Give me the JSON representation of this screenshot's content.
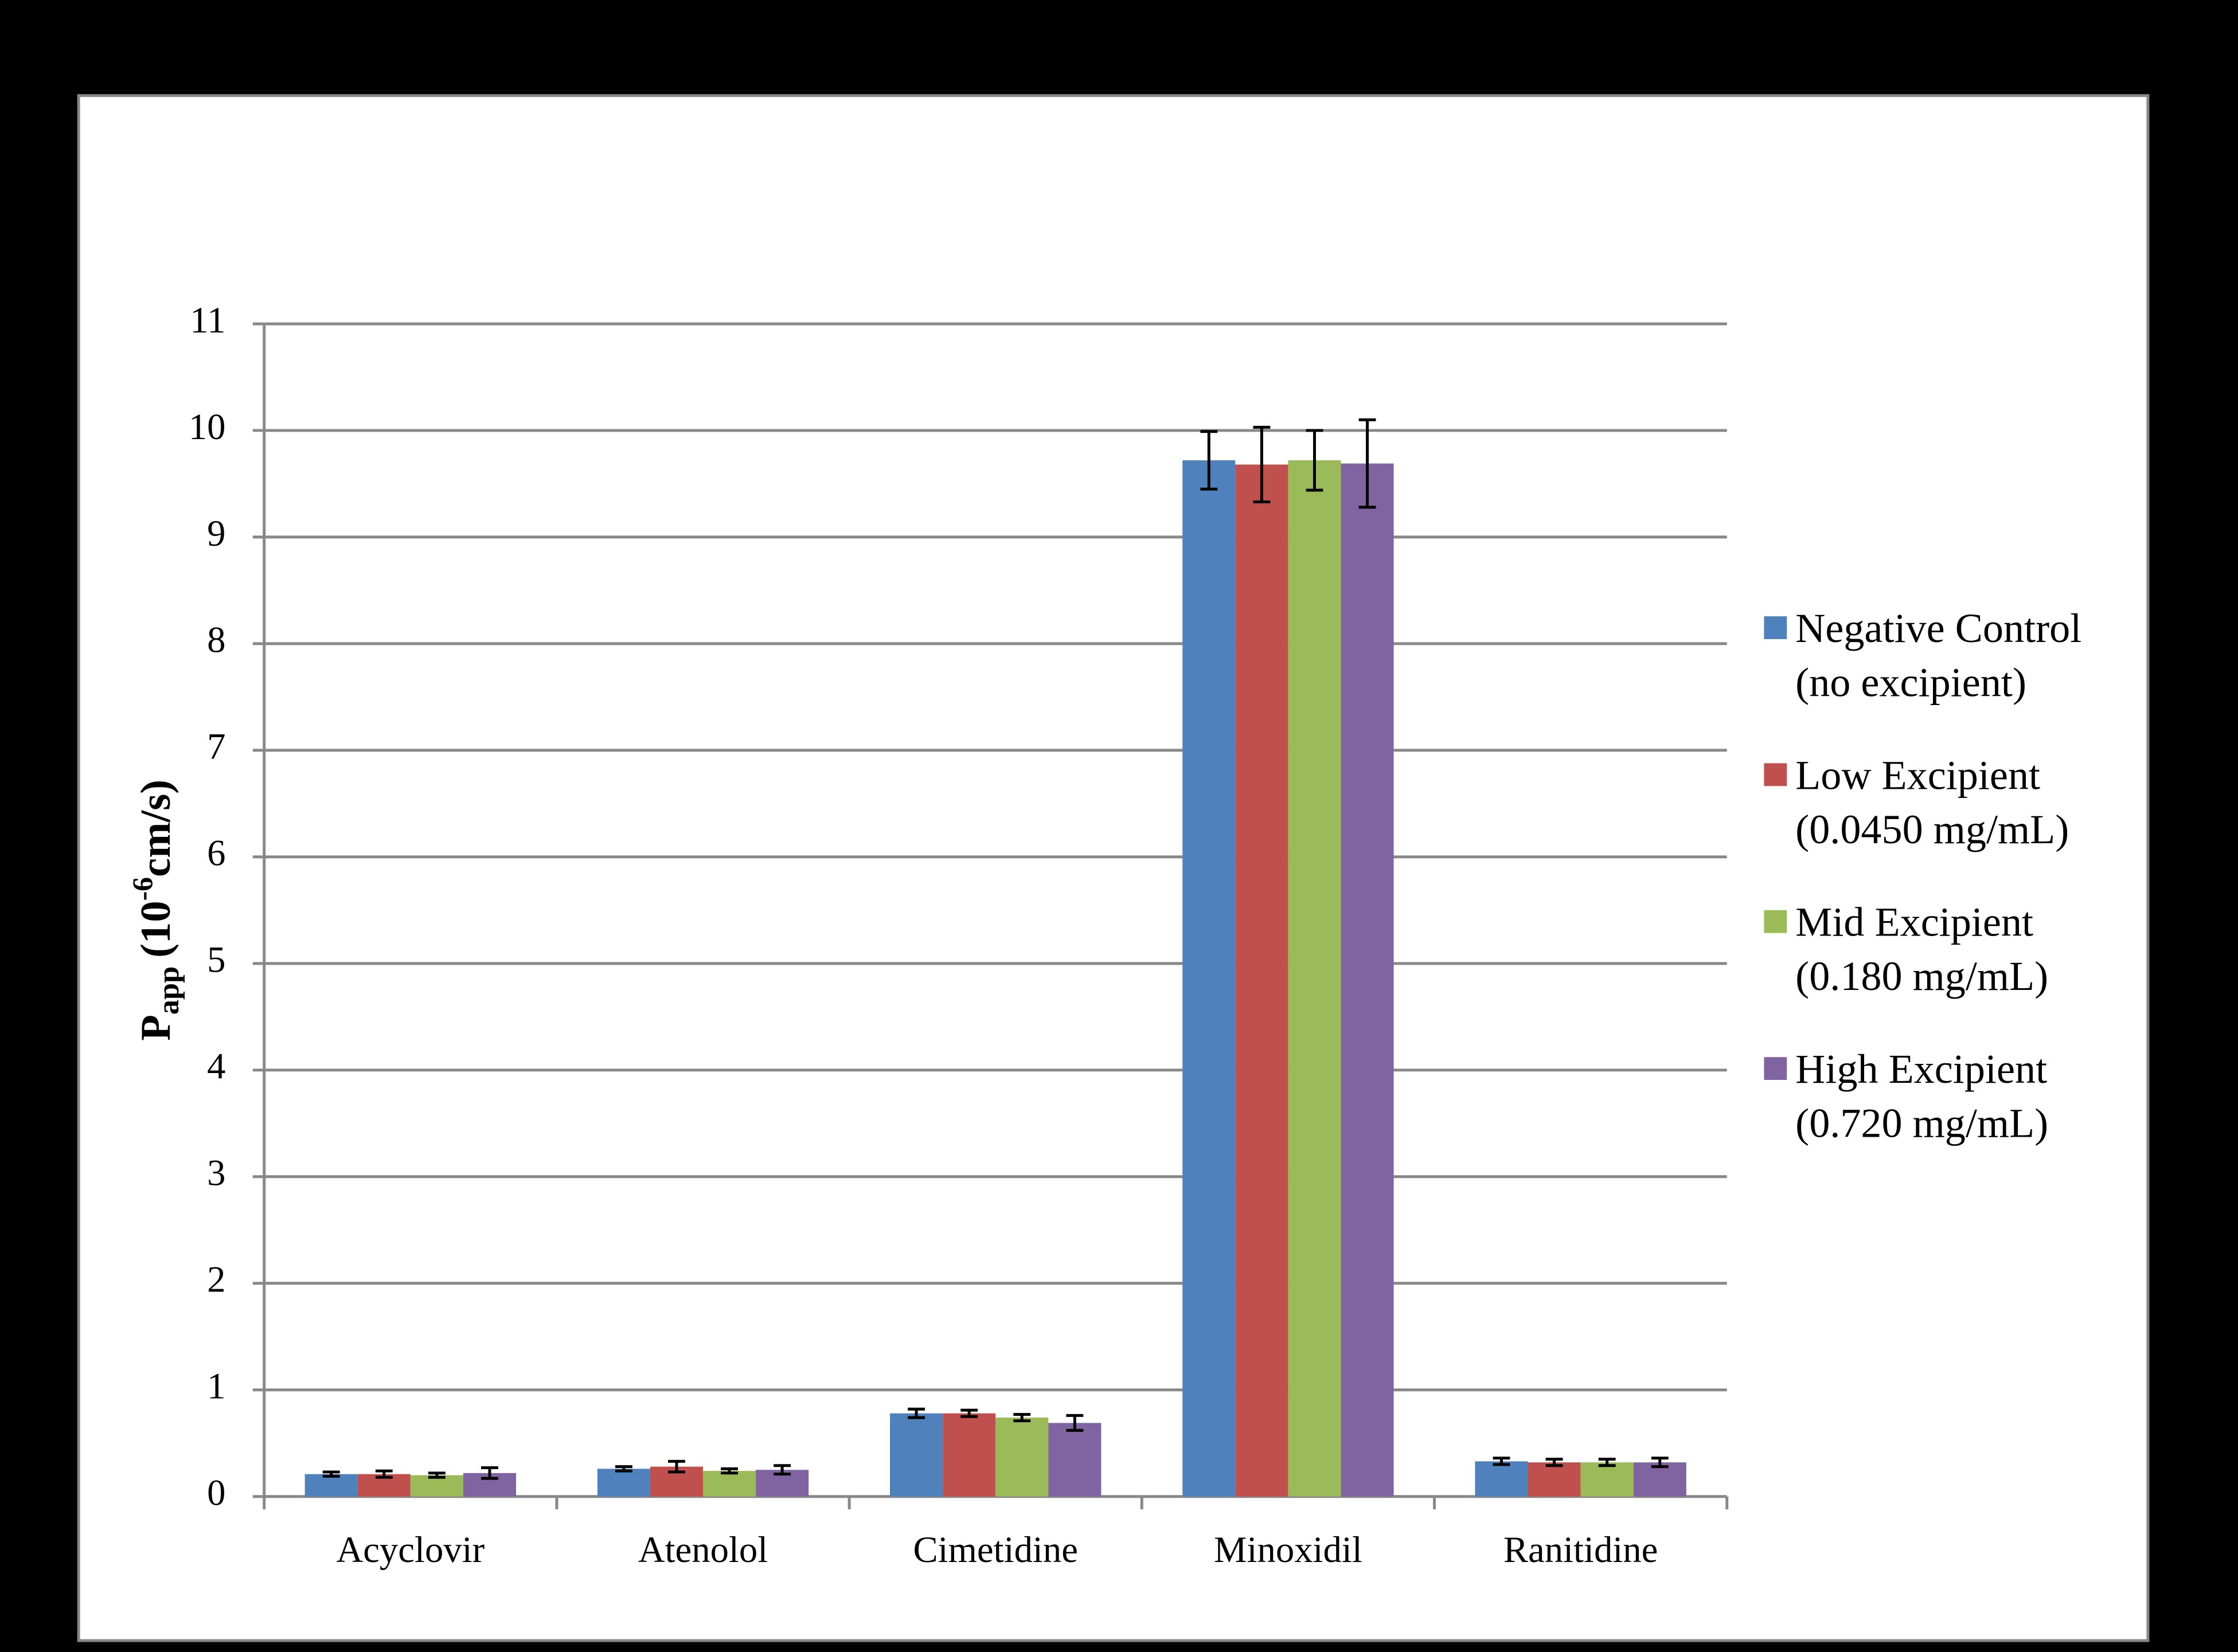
{
  "chart_data": {
    "type": "bar",
    "y_label": {
      "symbol": "P",
      "subscript": "app",
      "unit_start": "(10",
      "exponent": "-6",
      "unit_end": "cm/s)"
    },
    "categories": [
      "Acyclovir",
      "Atenolol",
      "Cimetidine",
      "Minoxidil",
      "Ranitidine"
    ],
    "series": [
      {
        "name": "Negative Control\n(no excipient)",
        "color": "#4f81bd",
        "values": [
          0.21,
          0.26,
          0.78,
          9.72,
          0.33
        ],
        "errors": [
          0.02,
          0.02,
          0.04,
          0.27,
          0.03
        ]
      },
      {
        "name": "Low Excipient\n(0.0450 mg/mL)",
        "color": "#c0504d",
        "values": [
          0.21,
          0.28,
          0.78,
          9.68,
          0.32
        ],
        "errors": [
          0.03,
          0.05,
          0.03,
          0.35,
          0.03
        ]
      },
      {
        "name": "Mid Excipient\n(0.180 mg/mL)",
        "color": "#9bbb59",
        "values": [
          0.2,
          0.24,
          0.74,
          9.72,
          0.32
        ],
        "errors": [
          0.02,
          0.02,
          0.03,
          0.28,
          0.03
        ]
      },
      {
        "name": "High Excipient\n(0.720 mg/mL)",
        "color": "#8064a2",
        "values": [
          0.22,
          0.25,
          0.69,
          9.69,
          0.32
        ],
        "errors": [
          0.05,
          0.04,
          0.07,
          0.41,
          0.04
        ]
      }
    ],
    "ylim": [
      0,
      11
    ],
    "yticks": [
      0,
      1,
      2,
      3,
      4,
      5,
      6,
      7,
      8,
      9,
      10,
      11
    ],
    "grid": true,
    "legend": "right"
  }
}
